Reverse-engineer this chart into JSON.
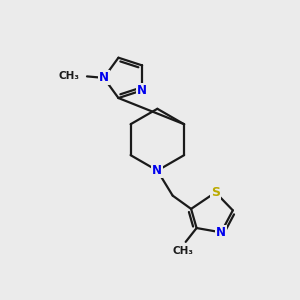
{
  "bg_color": "#ebebeb",
  "bond_color": "#1a1a1a",
  "N_color": "#0000ee",
  "S_color": "#bbaa00",
  "font_size": 8.5,
  "bond_width": 1.6,
  "figsize": [
    3.0,
    3.0
  ],
  "dpi": 100,
  "xlim": [
    0,
    10
  ],
  "ylim": [
    0,
    10
  ]
}
